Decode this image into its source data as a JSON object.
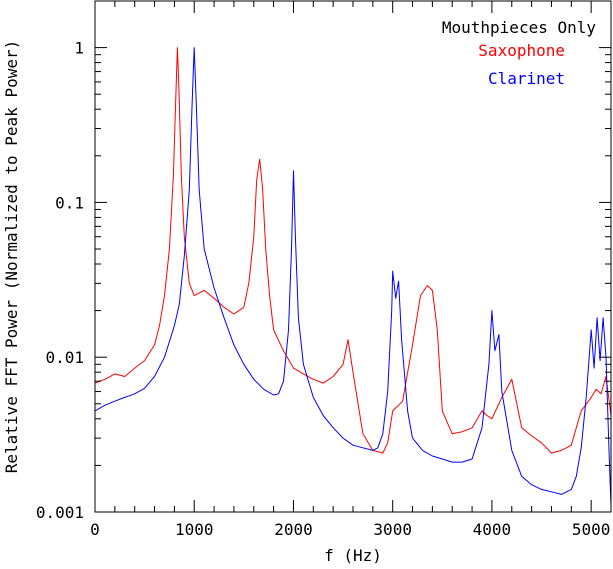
{
  "chart_data": {
    "type": "line",
    "title": "",
    "xlabel": "f (Hz)",
    "ylabel": "Relative FFT Power (Normalized to Peak Power)",
    "x_scale": "linear",
    "y_scale": "log",
    "xlim": [
      0,
      5200
    ],
    "ylim": [
      0.001,
      2
    ],
    "x_ticks": [
      0,
      1000,
      2000,
      3000,
      4000,
      5000
    ],
    "x_tick_labels": [
      "0",
      "1000",
      "2000",
      "3000",
      "4000",
      "5000"
    ],
    "y_ticks": [
      0.001,
      0.01,
      0.1,
      1
    ],
    "y_tick_labels": [
      "0.001",
      "0.01",
      "0.1",
      "1"
    ],
    "grid": false,
    "legend": {
      "position": "top-right",
      "title": "Mouthpieces Only",
      "entries": [
        "Saxophone",
        "Clarinet"
      ]
    },
    "series": [
      {
        "name": "Saxophone",
        "color": "#ff0000",
        "points": [
          [
            0,
            0.0068
          ],
          [
            100,
            0.0072
          ],
          [
            200,
            0.0078
          ],
          [
            300,
            0.0075
          ],
          [
            400,
            0.0085
          ],
          [
            500,
            0.0095
          ],
          [
            600,
            0.012
          ],
          [
            650,
            0.016
          ],
          [
            700,
            0.025
          ],
          [
            750,
            0.05
          ],
          [
            790,
            0.15
          ],
          [
            815,
            0.5
          ],
          [
            830,
            1.0
          ],
          [
            845,
            0.55
          ],
          [
            870,
            0.15
          ],
          [
            900,
            0.06
          ],
          [
            950,
            0.03
          ],
          [
            1000,
            0.025
          ],
          [
            1100,
            0.027
          ],
          [
            1200,
            0.024
          ],
          [
            1300,
            0.021
          ],
          [
            1400,
            0.019
          ],
          [
            1500,
            0.021
          ],
          [
            1550,
            0.03
          ],
          [
            1600,
            0.06
          ],
          [
            1630,
            0.14
          ],
          [
            1660,
            0.19
          ],
          [
            1690,
            0.12
          ],
          [
            1720,
            0.05
          ],
          [
            1760,
            0.025
          ],
          [
            1800,
            0.015
          ],
          [
            1900,
            0.011
          ],
          [
            2000,
            0.0085
          ],
          [
            2100,
            0.0078
          ],
          [
            2200,
            0.0072
          ],
          [
            2300,
            0.0068
          ],
          [
            2400,
            0.0075
          ],
          [
            2500,
            0.009
          ],
          [
            2550,
            0.013
          ],
          [
            2600,
            0.008
          ],
          [
            2700,
            0.0032
          ],
          [
            2800,
            0.0025
          ],
          [
            2900,
            0.0024
          ],
          [
            2950,
            0.0028
          ],
          [
            3000,
            0.0045
          ],
          [
            3100,
            0.0052
          ],
          [
            3200,
            0.012
          ],
          [
            3280,
            0.025
          ],
          [
            3350,
            0.029
          ],
          [
            3400,
            0.027
          ],
          [
            3450,
            0.015
          ],
          [
            3500,
            0.0045
          ],
          [
            3600,
            0.0032
          ],
          [
            3700,
            0.0033
          ],
          [
            3800,
            0.0035
          ],
          [
            3900,
            0.0045
          ],
          [
            3950,
            0.0042
          ],
          [
            4000,
            0.004
          ],
          [
            4100,
            0.0055
          ],
          [
            4200,
            0.0072
          ],
          [
            4300,
            0.0035
          ],
          [
            4400,
            0.0031
          ],
          [
            4500,
            0.0028
          ],
          [
            4600,
            0.0024
          ],
          [
            4700,
            0.0025
          ],
          [
            4800,
            0.0027
          ],
          [
            4900,
            0.0045
          ],
          [
            5000,
            0.0055
          ],
          [
            5050,
            0.0062
          ],
          [
            5100,
            0.0058
          ],
          [
            5150,
            0.0075
          ],
          [
            5200,
            0.0042
          ]
        ]
      },
      {
        "name": "Clarinet",
        "color": "#0000ff",
        "points": [
          [
            0,
            0.0045
          ],
          [
            100,
            0.0049
          ],
          [
            200,
            0.0052
          ],
          [
            300,
            0.0055
          ],
          [
            400,
            0.0058
          ],
          [
            500,
            0.0063
          ],
          [
            600,
            0.0075
          ],
          [
            700,
            0.01
          ],
          [
            800,
            0.016
          ],
          [
            850,
            0.022
          ],
          [
            900,
            0.045
          ],
          [
            950,
            0.12
          ],
          [
            980,
            0.45
          ],
          [
            1000,
            1.0
          ],
          [
            1020,
            0.45
          ],
          [
            1050,
            0.12
          ],
          [
            1100,
            0.05
          ],
          [
            1200,
            0.028
          ],
          [
            1300,
            0.018
          ],
          [
            1400,
            0.012
          ],
          [
            1500,
            0.009
          ],
          [
            1600,
            0.0072
          ],
          [
            1700,
            0.0062
          ],
          [
            1800,
            0.0057
          ],
          [
            1850,
            0.0058
          ],
          [
            1900,
            0.007
          ],
          [
            1950,
            0.015
          ],
          [
            1980,
            0.05
          ],
          [
            2000,
            0.16
          ],
          [
            2020,
            0.06
          ],
          [
            2050,
            0.018
          ],
          [
            2100,
            0.009
          ],
          [
            2200,
            0.0055
          ],
          [
            2300,
            0.0042
          ],
          [
            2400,
            0.0035
          ],
          [
            2500,
            0.003
          ],
          [
            2600,
            0.0027
          ],
          [
            2700,
            0.0026
          ],
          [
            2800,
            0.0025
          ],
          [
            2850,
            0.0026
          ],
          [
            2900,
            0.0032
          ],
          [
            2950,
            0.006
          ],
          [
            2990,
            0.02
          ],
          [
            3000,
            0.036
          ],
          [
            3030,
            0.024
          ],
          [
            3060,
            0.031
          ],
          [
            3090,
            0.013
          ],
          [
            3150,
            0.0045
          ],
          [
            3200,
            0.003
          ],
          [
            3300,
            0.0025
          ],
          [
            3400,
            0.0023
          ],
          [
            3500,
            0.0022
          ],
          [
            3600,
            0.0021
          ],
          [
            3700,
            0.0021
          ],
          [
            3800,
            0.0022
          ],
          [
            3900,
            0.0035
          ],
          [
            3970,
            0.009
          ],
          [
            4000,
            0.02
          ],
          [
            4030,
            0.011
          ],
          [
            4070,
            0.014
          ],
          [
            4100,
            0.006
          ],
          [
            4200,
            0.0025
          ],
          [
            4300,
            0.0017
          ],
          [
            4400,
            0.0015
          ],
          [
            4500,
            0.0014
          ],
          [
            4600,
            0.00135
          ],
          [
            4700,
            0.0013
          ],
          [
            4800,
            0.0014
          ],
          [
            4850,
            0.0017
          ],
          [
            4900,
            0.0026
          ],
          [
            4950,
            0.0055
          ],
          [
            5000,
            0.015
          ],
          [
            5030,
            0.0085
          ],
          [
            5060,
            0.018
          ],
          [
            5090,
            0.0095
          ],
          [
            5120,
            0.018
          ],
          [
            5150,
            0.01
          ],
          [
            5180,
            0.0025
          ],
          [
            5200,
            0.0011
          ]
        ]
      }
    ]
  }
}
